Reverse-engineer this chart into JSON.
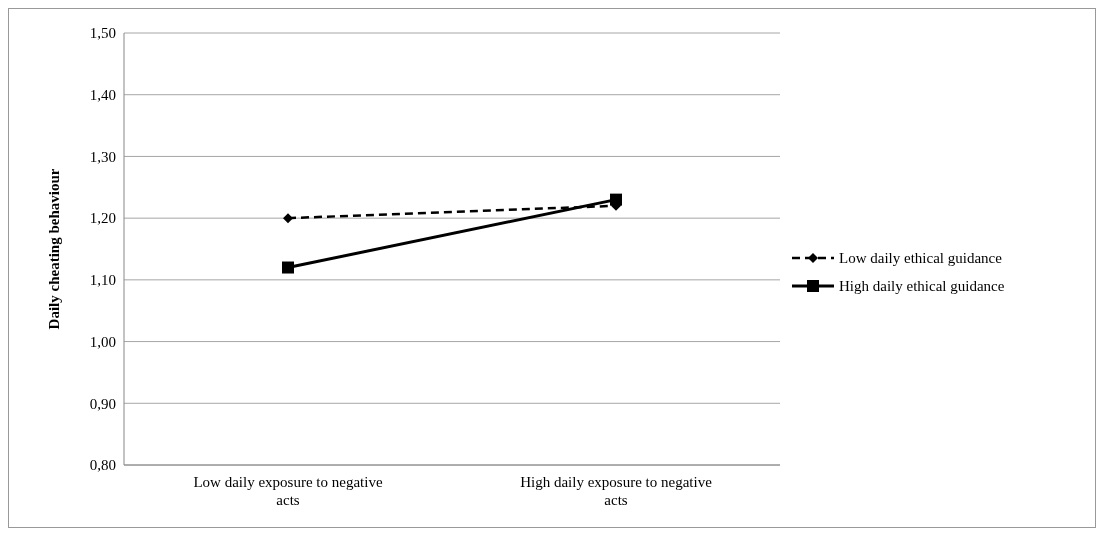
{
  "chart_data": {
    "type": "line",
    "ylabel": "Daily cheating behaviour",
    "categories": [
      "Low daily exposure to negative acts",
      "High daily exposure to negative acts"
    ],
    "series": [
      {
        "name": "Low daily ethical guidance",
        "color": "#000000",
        "values": [
          1.2,
          1.22
        ],
        "marker": "diamond",
        "line_style": "dashed"
      },
      {
        "name": "High daily ethical guidance",
        "color": "#000000",
        "values": [
          1.12,
          1.23
        ],
        "marker": "square",
        "line_style": "solid"
      }
    ],
    "ylim": [
      0.8,
      1.5
    ],
    "yticks": [
      {
        "value": 0.8,
        "label": "0,80"
      },
      {
        "value": 0.9,
        "label": "0,90"
      },
      {
        "value": 1.0,
        "label": "1,00"
      },
      {
        "value": 1.1,
        "label": "1,10"
      },
      {
        "value": 1.2,
        "label": "1,20"
      },
      {
        "value": 1.3,
        "label": "1,30"
      },
      {
        "value": 1.4,
        "label": "1,40"
      },
      {
        "value": 1.5,
        "label": "1,50"
      }
    ],
    "grid": "y",
    "legend": "right"
  }
}
